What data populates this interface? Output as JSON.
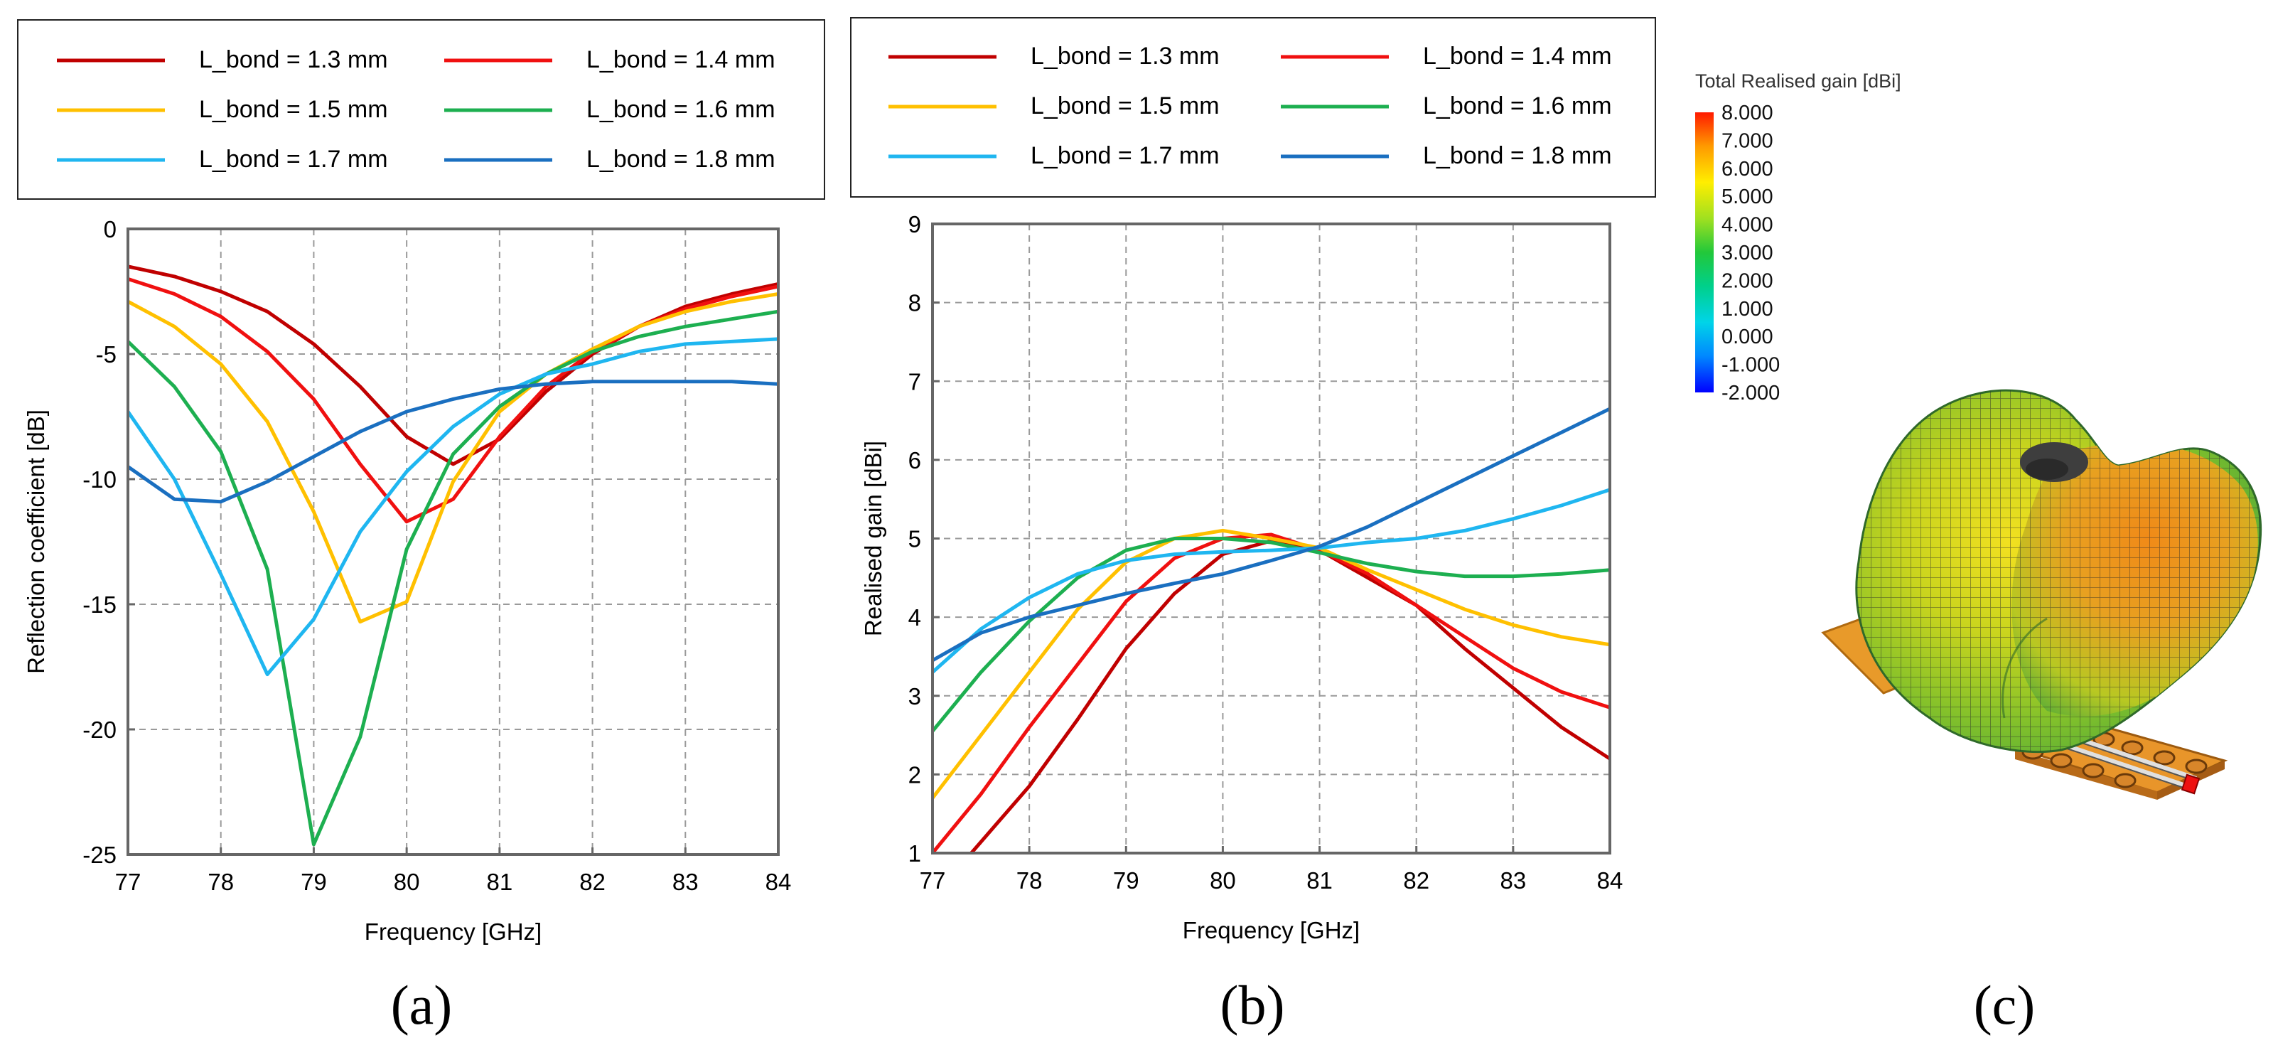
{
  "figure": {
    "panel_labels": [
      "(a)",
      "(b)",
      "(c)"
    ]
  },
  "legend": {
    "entries": [
      {
        "label": "L_bond = 1.3 mm",
        "color": "#C00000"
      },
      {
        "label": "L_bond = 1.4 mm",
        "color": "#F01010"
      },
      {
        "label": "L_bond = 1.5 mm",
        "color": "#FFC000"
      },
      {
        "label": "L_bond = 1.6 mm",
        "color": "#1DAF50"
      },
      {
        "label": "L_bond = 1.7 mm",
        "color": "#1FB6F0"
      },
      {
        "label": "L_bond = 1.8 mm",
        "color": "#1A6FC0"
      }
    ]
  },
  "chart_data": [
    {
      "type": "line",
      "id": "a",
      "title": "",
      "xlabel": "Frequency [GHz]",
      "ylabel": "Reflection coefficient [dB]",
      "xlim": [
        77,
        84
      ],
      "ylim": [
        -25,
        0
      ],
      "xticks": [
        77,
        78,
        79,
        80,
        81,
        82,
        83,
        84
      ],
      "yticks": [
        0,
        -5,
        -10,
        -15,
        -20,
        -25
      ],
      "grid": true,
      "series": [
        {
          "name": "L_bond = 1.3 mm",
          "x": [
            77,
            77.5,
            78,
            78.5,
            79,
            79.5,
            80,
            80.5,
            81,
            81.5,
            82,
            82.5,
            83,
            83.5,
            84
          ],
          "values": [
            -1.5,
            -1.9,
            -2.5,
            -3.3,
            -4.6,
            -6.3,
            -8.3,
            -9.4,
            -8.4,
            -6.5,
            -5.0,
            -3.9,
            -3.1,
            -2.6,
            -2.2
          ]
        },
        {
          "name": "L_bond = 1.4 mm",
          "x": [
            77,
            77.5,
            78,
            78.5,
            79,
            79.5,
            80,
            80.5,
            81,
            81.5,
            82,
            82.5,
            83,
            83.5,
            84
          ],
          "values": [
            -2.0,
            -2.6,
            -3.5,
            -4.9,
            -6.8,
            -9.4,
            -11.7,
            -10.8,
            -8.3,
            -6.3,
            -4.9,
            -3.9,
            -3.2,
            -2.7,
            -2.3
          ]
        },
        {
          "name": "L_bond = 1.5 mm",
          "x": [
            77,
            77.5,
            78,
            78.5,
            79,
            79.5,
            80,
            80.5,
            81,
            81.5,
            82,
            82.5,
            83,
            83.5,
            84
          ],
          "values": [
            -2.9,
            -3.9,
            -5.4,
            -7.7,
            -11.3,
            -15.7,
            -14.9,
            -10.1,
            -7.3,
            -5.8,
            -4.8,
            -3.9,
            -3.3,
            -2.9,
            -2.6
          ]
        },
        {
          "name": "L_bond = 1.6 mm",
          "x": [
            77,
            77.5,
            78,
            78.5,
            79,
            79.5,
            80,
            80.5,
            81,
            81.5,
            82,
            82.5,
            83,
            83.5,
            84
          ],
          "values": [
            -4.5,
            -6.3,
            -8.9,
            -13.6,
            -24.6,
            -20.3,
            -12.8,
            -9.0,
            -7.1,
            -5.8,
            -4.9,
            -4.3,
            -3.9,
            -3.6,
            -3.3
          ]
        },
        {
          "name": "L_bond = 1.7 mm",
          "x": [
            77,
            77.5,
            78,
            78.5,
            79,
            79.5,
            80,
            80.5,
            81,
            81.5,
            82,
            82.5,
            83,
            83.5,
            84
          ],
          "values": [
            -7.3,
            -10.0,
            -13.8,
            -17.8,
            -15.6,
            -12.1,
            -9.7,
            -7.9,
            -6.6,
            -5.8,
            -5.4,
            -4.9,
            -4.6,
            -4.5,
            -4.4
          ]
        },
        {
          "name": "L_bond = 1.8 mm",
          "x": [
            77,
            77.5,
            78,
            78.5,
            79,
            79.5,
            80,
            80.5,
            81,
            81.5,
            82,
            82.5,
            83,
            83.5,
            84
          ],
          "values": [
            -9.5,
            -10.8,
            -10.9,
            -10.1,
            -9.1,
            -8.1,
            -7.3,
            -6.8,
            -6.4,
            -6.2,
            -6.1,
            -6.1,
            -6.1,
            -6.1,
            -6.2
          ]
        }
      ]
    },
    {
      "type": "line",
      "id": "b",
      "title": "",
      "xlabel": "Frequency [GHz]",
      "ylabel": "Realised gain [dBi]",
      "xlim": [
        77,
        84
      ],
      "ylim": [
        1,
        9
      ],
      "xticks": [
        77,
        78,
        79,
        80,
        81,
        82,
        83,
        84
      ],
      "yticks": [
        1,
        2,
        3,
        4,
        5,
        6,
        7,
        8,
        9
      ],
      "grid": true,
      "series": [
        {
          "name": "L_bond = 1.3 mm",
          "x": [
            77.4,
            78,
            78.5,
            79,
            79.5,
            80,
            80.5,
            81,
            81.5,
            82,
            82.5,
            83,
            83.5,
            84
          ],
          "values": [
            1.0,
            1.85,
            2.7,
            3.6,
            4.3,
            4.8,
            4.97,
            4.85,
            4.5,
            4.15,
            3.6,
            3.1,
            2.6,
            2.2
          ]
        },
        {
          "name": "L_bond = 1.4 mm",
          "x": [
            77,
            77.5,
            78,
            78.5,
            79,
            79.5,
            80,
            80.5,
            81,
            81.5,
            82,
            82.5,
            83,
            83.5,
            84
          ],
          "values": [
            1.0,
            1.75,
            2.6,
            3.4,
            4.2,
            4.75,
            5.0,
            5.05,
            4.85,
            4.55,
            4.15,
            3.75,
            3.35,
            3.05,
            2.85
          ]
        },
        {
          "name": "L_bond = 1.5 mm",
          "x": [
            77,
            77.5,
            78,
            78.5,
            79,
            79.5,
            80,
            80.5,
            81,
            81.5,
            82,
            82.5,
            83,
            83.5,
            84
          ],
          "values": [
            1.7,
            2.5,
            3.3,
            4.1,
            4.7,
            5.0,
            5.1,
            5.0,
            4.88,
            4.6,
            4.35,
            4.1,
            3.9,
            3.75,
            3.65
          ]
        },
        {
          "name": "L_bond = 1.6 mm",
          "x": [
            77,
            77.5,
            78,
            78.5,
            79,
            79.5,
            80,
            80.5,
            81,
            81.5,
            82,
            82.5,
            83,
            83.5,
            84
          ],
          "values": [
            2.55,
            3.3,
            3.95,
            4.5,
            4.85,
            5.0,
            5.0,
            4.95,
            4.82,
            4.68,
            4.58,
            4.52,
            4.52,
            4.55,
            4.6
          ]
        },
        {
          "name": "L_bond = 1.7 mm",
          "x": [
            77,
            77.5,
            78,
            78.5,
            79,
            79.5,
            80,
            80.5,
            81,
            81.5,
            82,
            82.5,
            83,
            83.5,
            84
          ],
          "values": [
            3.3,
            3.85,
            4.25,
            4.55,
            4.72,
            4.8,
            4.83,
            4.85,
            4.88,
            4.95,
            5.0,
            5.1,
            5.25,
            5.42,
            5.62
          ]
        },
        {
          "name": "L_bond = 1.8 mm",
          "x": [
            77,
            77.5,
            78,
            78.5,
            79,
            79.5,
            80,
            80.5,
            81,
            81.5,
            82,
            82.5,
            83,
            83.5,
            84
          ],
          "values": [
            3.45,
            3.8,
            4.0,
            4.15,
            4.3,
            4.43,
            4.55,
            4.72,
            4.9,
            5.15,
            5.45,
            5.75,
            6.05,
            6.35,
            6.65
          ]
        }
      ]
    },
    {
      "type": "3d-radiation-pattern",
      "id": "c",
      "colorbar": {
        "title": "Total Realised gain [dBi]",
        "ticks": [
          "8.000",
          "7.000",
          "6.000",
          "5.000",
          "4.000",
          "3.000",
          "2.000",
          "1.000",
          "0.000",
          "-1.000",
          "-2.000"
        ],
        "min": -2,
        "max": 8
      }
    }
  ]
}
